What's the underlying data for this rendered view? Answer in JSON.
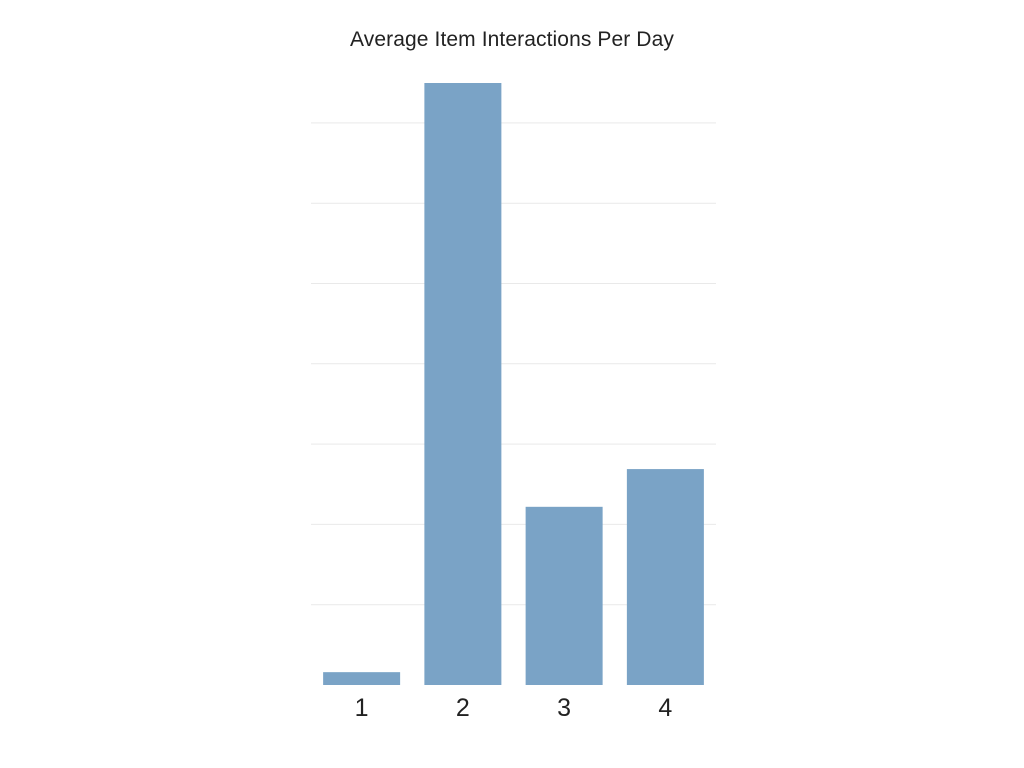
{
  "chart_data": {
    "type": "bar",
    "title": "Average Item Interactions Per Day",
    "categories": [
      "1",
      "2",
      "3",
      "4"
    ],
    "values": [
      0.16,
      7.5,
      2.22,
      2.69
    ],
    "ylim": [
      0,
      7.5
    ],
    "grid": true,
    "bar_color": "#7aa3c6",
    "grid_color": "#e9e9e9"
  }
}
